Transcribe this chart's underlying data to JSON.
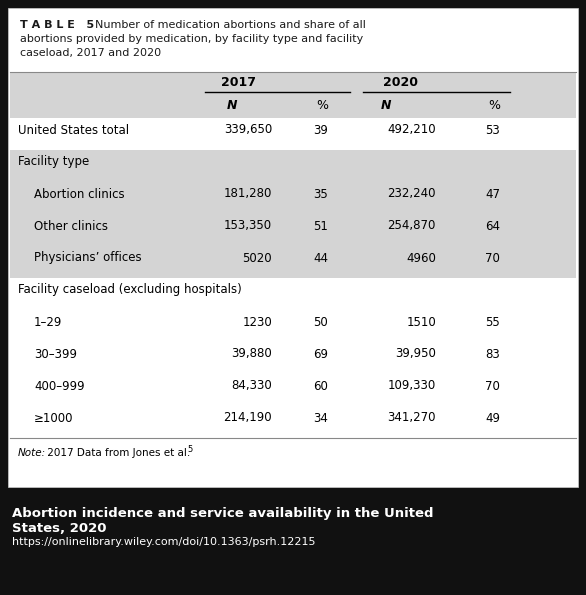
{
  "title_bold": "TABLE 5",
  "title_normal": "  Number of medication abortions and share of all abortions provided by medication, by facility type and facility caseload, 2017 and 2020",
  "rows": [
    {
      "label": "United States total",
      "indent": 0,
      "vals": [
        "339,650",
        "39",
        "492,210",
        "53"
      ],
      "bg": "white",
      "header": false
    },
    {
      "label": "Facility type",
      "indent": 0,
      "vals": [
        "",
        "",
        "",
        ""
      ],
      "bg": "gray",
      "header": true
    },
    {
      "label": "Abortion clinics",
      "indent": 1,
      "vals": [
        "181,280",
        "35",
        "232,240",
        "47"
      ],
      "bg": "gray",
      "header": false
    },
    {
      "label": "Other clinics",
      "indent": 1,
      "vals": [
        "153,350",
        "51",
        "254,870",
        "64"
      ],
      "bg": "gray",
      "header": false
    },
    {
      "label": "Physicians’ offices",
      "indent": 1,
      "vals": [
        "5020",
        "44",
        "4960",
        "70"
      ],
      "bg": "gray",
      "header": false
    },
    {
      "label": "Facility caseload (excluding hospitals)",
      "indent": 0,
      "vals": [
        "",
        "",
        "",
        ""
      ],
      "bg": "white",
      "header": true
    },
    {
      "label": "1–29",
      "indent": 1,
      "vals": [
        "1230",
        "50",
        "1510",
        "55"
      ],
      "bg": "white",
      "header": false
    },
    {
      "label": "30–399",
      "indent": 1,
      "vals": [
        "39,880",
        "69",
        "39,950",
        "83"
      ],
      "bg": "white",
      "header": false
    },
    {
      "label": "400–999",
      "indent": 1,
      "vals": [
        "84,330",
        "60",
        "109,330",
        "70"
      ],
      "bg": "white",
      "header": false
    },
    {
      "label": "≥1000",
      "indent": 1,
      "vals": [
        "214,190",
        "34",
        "341,270",
        "49"
      ],
      "bg": "white",
      "header": false
    }
  ],
  "note_italic": "Note:",
  "note_normal": " 2017 Data from Jones et al.",
  "note_superscript": "5",
  "footer_line1": "Abortion incidence and service availability in the United",
  "footer_line2": "States, 2020",
  "footer_url": "https://onlinelibrary.wiley.com/doi/10.1363/psrh.12215",
  "col_gray": "#d4d4d4",
  "col_white": "#ffffff",
  "col_bg_dark": "#111111",
  "col_text": "#1a1a1a",
  "col_text_white": "#ffffff",
  "card_bg": "#ffffff",
  "border_color": "#888888"
}
